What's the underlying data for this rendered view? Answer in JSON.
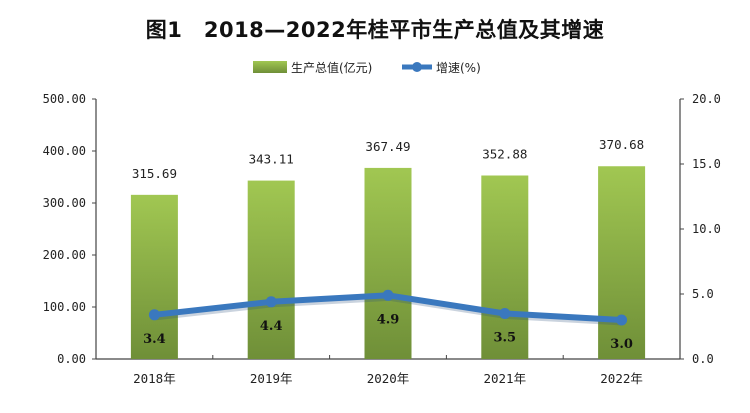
{
  "chart_data": {
    "type": "bar+line",
    "title": "图1　2018—2022年桂平市生产总值及其增速",
    "categories": [
      "2018年",
      "2019年",
      "2020年",
      "2021年",
      "2022年"
    ],
    "series": [
      {
        "name": "生产总值(亿元)",
        "type": "bar",
        "axis": "left",
        "values": [
          315.69,
          343.11,
          367.49,
          352.88,
          370.68
        ],
        "labels": [
          "315.69",
          "343.11",
          "367.49",
          "352.88",
          "370.68"
        ],
        "color": "#8db548"
      },
      {
        "name": "增速(%)",
        "type": "line",
        "axis": "right",
        "values": [
          3.4,
          4.4,
          4.9,
          3.5,
          3.0
        ],
        "labels": [
          "3.4",
          "4.4",
          "4.9",
          "3.5",
          "3.0"
        ],
        "color": "#3a78be"
      }
    ],
    "y_left": {
      "range": [
        0,
        500
      ],
      "ticks": [
        "0.00",
        "100.00",
        "200.00",
        "300.00",
        "400.00",
        "500.00"
      ]
    },
    "y_right": {
      "range": [
        0,
        20
      ],
      "ticks": [
        "0.0",
        "5.0",
        "10.0",
        "15.0",
        "20.0"
      ]
    },
    "grid": false,
    "legend": "top"
  }
}
